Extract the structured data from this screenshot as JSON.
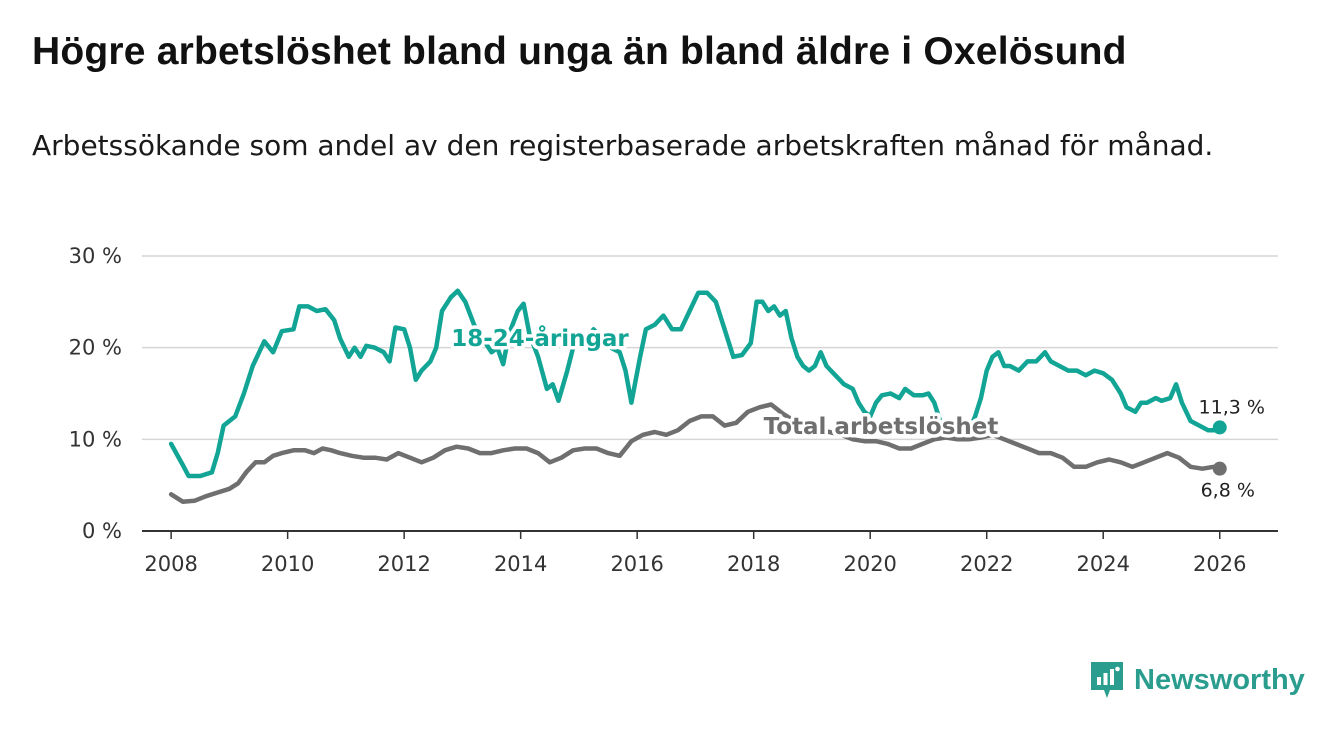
{
  "title": "Högre arbetslöshet bland unga än bland äldre i Oxelösund",
  "subtitle": "Arbetssökande som andel av den registerbaserade arbetskraften månad för månad.",
  "brand": "Newsworthy",
  "colors": {
    "youth": "#12a595",
    "total": "#6f6f6f",
    "grid": "#d6d6d6",
    "axis": "#333333",
    "brand": "#2a9d8f"
  },
  "chart_data": {
    "type": "line",
    "title": "Högre arbetslöshet bland unga än bland äldre i Oxelösund",
    "xlabel": "",
    "ylabel": "",
    "xlim": [
      2007.5,
      2027.0
    ],
    "ylim": [
      0,
      30
    ],
    "y_ticks": [
      0,
      10,
      20,
      30
    ],
    "y_tick_labels": [
      "0 %",
      "10 %",
      "20 %",
      "30 %"
    ],
    "x_ticks": [
      2008,
      2010,
      2012,
      2014,
      2016,
      2018,
      2020,
      2022,
      2024,
      2026
    ],
    "x_tick_labels": [
      "2008",
      "2010",
      "2012",
      "2014",
      "2016",
      "2018",
      "2020",
      "2022",
      "2024",
      "2026"
    ],
    "grid": true,
    "series": [
      {
        "name": "18-24-åringar",
        "color": "#12a595",
        "end_label": "11,3 %",
        "points": [
          [
            2008.0,
            9.5
          ],
          [
            2008.2,
            7.2
          ],
          [
            2008.3,
            6.0
          ],
          [
            2008.5,
            6.0
          ],
          [
            2008.7,
            6.4
          ],
          [
            2008.8,
            8.5
          ],
          [
            2008.9,
            11.5
          ],
          [
            2009.1,
            12.5
          ],
          [
            2009.25,
            15.0
          ],
          [
            2009.4,
            18.0
          ],
          [
            2009.6,
            20.7
          ],
          [
            2009.75,
            19.5
          ],
          [
            2009.9,
            21.8
          ],
          [
            2010.1,
            22.0
          ],
          [
            2010.2,
            24.5
          ],
          [
            2010.35,
            24.5
          ],
          [
            2010.5,
            24.0
          ],
          [
            2010.65,
            24.2
          ],
          [
            2010.8,
            23.0
          ],
          [
            2010.9,
            21.0
          ],
          [
            2011.05,
            19.0
          ],
          [
            2011.15,
            20.0
          ],
          [
            2011.25,
            19.0
          ],
          [
            2011.35,
            20.2
          ],
          [
            2011.5,
            20.0
          ],
          [
            2011.65,
            19.5
          ],
          [
            2011.75,
            18.5
          ],
          [
            2011.85,
            22.2
          ],
          [
            2012.0,
            22.0
          ],
          [
            2012.1,
            20.0
          ],
          [
            2012.2,
            16.5
          ],
          [
            2012.3,
            17.5
          ],
          [
            2012.45,
            18.5
          ],
          [
            2012.55,
            20.0
          ],
          [
            2012.65,
            24.0
          ],
          [
            2012.8,
            25.5
          ],
          [
            2012.92,
            26.2
          ],
          [
            2013.05,
            25.0
          ],
          [
            2013.2,
            22.5
          ],
          [
            2013.35,
            21.0
          ],
          [
            2013.5,
            19.5
          ],
          [
            2013.6,
            20.0
          ],
          [
            2013.7,
            18.2
          ],
          [
            2013.8,
            21.5
          ],
          [
            2013.95,
            24.0
          ],
          [
            2014.05,
            24.8
          ],
          [
            2014.15,
            21.5
          ],
          [
            2014.3,
            19.0
          ],
          [
            2014.45,
            15.5
          ],
          [
            2014.55,
            16.0
          ],
          [
            2014.65,
            14.2
          ],
          [
            2014.8,
            17.5
          ],
          [
            2014.9,
            20.0
          ],
          [
            2015.0,
            21.0
          ],
          [
            2015.1,
            20.5
          ],
          [
            2015.25,
            22.0
          ],
          [
            2015.4,
            21.0
          ],
          [
            2015.55,
            20.0
          ],
          [
            2015.7,
            19.5
          ],
          [
            2015.8,
            17.5
          ],
          [
            2015.9,
            14.0
          ],
          [
            2016.05,
            19.0
          ],
          [
            2016.15,
            22.0
          ],
          [
            2016.3,
            22.5
          ],
          [
            2016.45,
            23.5
          ],
          [
            2016.6,
            22.0
          ],
          [
            2016.75,
            22.0
          ],
          [
            2016.9,
            24.0
          ],
          [
            2017.05,
            26.0
          ],
          [
            2017.2,
            26.0
          ],
          [
            2017.35,
            25.0
          ],
          [
            2017.5,
            22.0
          ],
          [
            2017.65,
            19.0
          ],
          [
            2017.8,
            19.2
          ],
          [
            2017.95,
            20.5
          ],
          [
            2018.05,
            25.0
          ],
          [
            2018.15,
            25.0
          ],
          [
            2018.25,
            24.0
          ],
          [
            2018.35,
            24.5
          ],
          [
            2018.45,
            23.5
          ],
          [
            2018.55,
            24.0
          ],
          [
            2018.65,
            21.0
          ],
          [
            2018.75,
            19.0
          ],
          [
            2018.85,
            18.0
          ],
          [
            2018.95,
            17.5
          ],
          [
            2019.05,
            18.0
          ],
          [
            2019.15,
            19.5
          ],
          [
            2019.25,
            18.0
          ],
          [
            2019.4,
            17.0
          ],
          [
            2019.55,
            16.0
          ],
          [
            2019.7,
            15.5
          ],
          [
            2019.8,
            14.0
          ],
          [
            2019.9,
            13.0
          ],
          [
            2020.0,
            12.5
          ],
          [
            2020.1,
            14.0
          ],
          [
            2020.2,
            14.8
          ],
          [
            2020.35,
            15.0
          ],
          [
            2020.5,
            14.5
          ],
          [
            2020.6,
            15.5
          ],
          [
            2020.75,
            14.8
          ],
          [
            2020.9,
            14.8
          ],
          [
            2021.0,
            15.0
          ],
          [
            2021.1,
            14.0
          ],
          [
            2021.2,
            12.0
          ],
          [
            2021.3,
            11.0
          ],
          [
            2021.4,
            11.0
          ],
          [
            2021.55,
            10.5
          ],
          [
            2021.7,
            11.0
          ],
          [
            2021.8,
            12.5
          ],
          [
            2021.9,
            14.5
          ],
          [
            2022.0,
            17.5
          ],
          [
            2022.1,
            19.0
          ],
          [
            2022.2,
            19.5
          ],
          [
            2022.3,
            18.0
          ],
          [
            2022.4,
            18.0
          ],
          [
            2022.55,
            17.5
          ],
          [
            2022.7,
            18.5
          ],
          [
            2022.85,
            18.5
          ],
          [
            2023.0,
            19.5
          ],
          [
            2023.1,
            18.5
          ],
          [
            2023.25,
            18.0
          ],
          [
            2023.4,
            17.5
          ],
          [
            2023.55,
            17.5
          ],
          [
            2023.7,
            17.0
          ],
          [
            2023.85,
            17.5
          ],
          [
            2024.0,
            17.2
          ],
          [
            2024.15,
            16.5
          ],
          [
            2024.3,
            15.0
          ],
          [
            2024.4,
            13.5
          ],
          [
            2024.55,
            13.0
          ],
          [
            2024.65,
            14.0
          ],
          [
            2024.75,
            14.0
          ],
          [
            2024.9,
            14.5
          ],
          [
            2025.0,
            14.2
          ],
          [
            2025.15,
            14.5
          ],
          [
            2025.25,
            16.0
          ],
          [
            2025.35,
            14.0
          ],
          [
            2025.5,
            12.0
          ],
          [
            2025.65,
            11.5
          ],
          [
            2025.8,
            11.0
          ],
          [
            2025.92,
            11.0
          ],
          [
            2026.0,
            11.3
          ]
        ]
      },
      {
        "name": "Total arbetslöshet",
        "color": "#6f6f6f",
        "end_label": "6,8 %",
        "points": [
          [
            2008.0,
            4.0
          ],
          [
            2008.2,
            3.2
          ],
          [
            2008.4,
            3.3
          ],
          [
            2008.6,
            3.8
          ],
          [
            2008.8,
            4.2
          ],
          [
            2009.0,
            4.6
          ],
          [
            2009.15,
            5.2
          ],
          [
            2009.3,
            6.5
          ],
          [
            2009.45,
            7.5
          ],
          [
            2009.6,
            7.5
          ],
          [
            2009.75,
            8.2
          ],
          [
            2009.9,
            8.5
          ],
          [
            2010.1,
            8.8
          ],
          [
            2010.3,
            8.8
          ],
          [
            2010.45,
            8.5
          ],
          [
            2010.6,
            9.0
          ],
          [
            2010.75,
            8.8
          ],
          [
            2010.9,
            8.5
          ],
          [
            2011.1,
            8.2
          ],
          [
            2011.3,
            8.0
          ],
          [
            2011.5,
            8.0
          ],
          [
            2011.7,
            7.8
          ],
          [
            2011.9,
            8.5
          ],
          [
            2012.1,
            8.0
          ],
          [
            2012.3,
            7.5
          ],
          [
            2012.5,
            8.0
          ],
          [
            2012.7,
            8.8
          ],
          [
            2012.9,
            9.2
          ],
          [
            2013.1,
            9.0
          ],
          [
            2013.3,
            8.5
          ],
          [
            2013.5,
            8.5
          ],
          [
            2013.7,
            8.8
          ],
          [
            2013.9,
            9.0
          ],
          [
            2014.1,
            9.0
          ],
          [
            2014.3,
            8.5
          ],
          [
            2014.5,
            7.5
          ],
          [
            2014.7,
            8.0
          ],
          [
            2014.9,
            8.8
          ],
          [
            2015.1,
            9.0
          ],
          [
            2015.3,
            9.0
          ],
          [
            2015.5,
            8.5
          ],
          [
            2015.7,
            8.2
          ],
          [
            2015.9,
            9.8
          ],
          [
            2016.1,
            10.5
          ],
          [
            2016.3,
            10.8
          ],
          [
            2016.5,
            10.5
          ],
          [
            2016.7,
            11.0
          ],
          [
            2016.9,
            12.0
          ],
          [
            2017.1,
            12.5
          ],
          [
            2017.3,
            12.5
          ],
          [
            2017.5,
            11.5
          ],
          [
            2017.7,
            11.8
          ],
          [
            2017.9,
            13.0
          ],
          [
            2018.1,
            13.5
          ],
          [
            2018.3,
            13.8
          ],
          [
            2018.5,
            12.8
          ],
          [
            2018.7,
            12.0
          ],
          [
            2018.9,
            11.5
          ],
          [
            2019.1,
            11.0
          ],
          [
            2019.3,
            10.8
          ],
          [
            2019.5,
            10.5
          ],
          [
            2019.7,
            10.0
          ],
          [
            2019.9,
            9.8
          ],
          [
            2020.1,
            9.8
          ],
          [
            2020.3,
            9.5
          ],
          [
            2020.5,
            9.0
          ],
          [
            2020.7,
            9.0
          ],
          [
            2020.9,
            9.5
          ],
          [
            2021.1,
            10.0
          ],
          [
            2021.3,
            10.2
          ],
          [
            2021.5,
            10.0
          ],
          [
            2021.7,
            10.0
          ],
          [
            2021.9,
            10.2
          ],
          [
            2022.1,
            10.5
          ],
          [
            2022.3,
            10.0
          ],
          [
            2022.5,
            9.5
          ],
          [
            2022.7,
            9.0
          ],
          [
            2022.9,
            8.5
          ],
          [
            2023.1,
            8.5
          ],
          [
            2023.3,
            8.0
          ],
          [
            2023.5,
            7.0
          ],
          [
            2023.7,
            7.0
          ],
          [
            2023.9,
            7.5
          ],
          [
            2024.1,
            7.8
          ],
          [
            2024.3,
            7.5
          ],
          [
            2024.5,
            7.0
          ],
          [
            2024.7,
            7.5
          ],
          [
            2024.9,
            8.0
          ],
          [
            2025.1,
            8.5
          ],
          [
            2025.3,
            8.0
          ],
          [
            2025.5,
            7.0
          ],
          [
            2025.7,
            6.8
          ],
          [
            2025.9,
            7.0
          ],
          [
            2026.0,
            6.8
          ]
        ]
      }
    ]
  }
}
